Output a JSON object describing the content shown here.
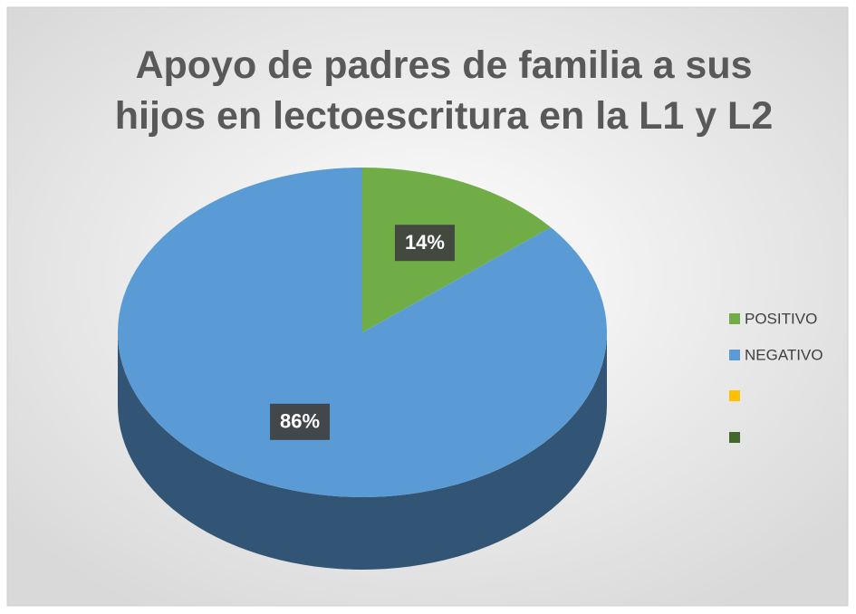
{
  "chart_data": {
    "type": "pie",
    "title": "Apoyo de padres de familia a sus hijos en lectoescritura en la L1 y L2",
    "categories": [
      "POSITIVO",
      "NEGATIVO",
      null,
      null
    ],
    "values": [
      14,
      86,
      0,
      0
    ],
    "value_labels": [
      "14%",
      "86%",
      null,
      null
    ],
    "colors": [
      "#70ad47",
      "#5b9bd5",
      "#ffc000",
      "#43682b"
    ],
    "legend": "right"
  }
}
